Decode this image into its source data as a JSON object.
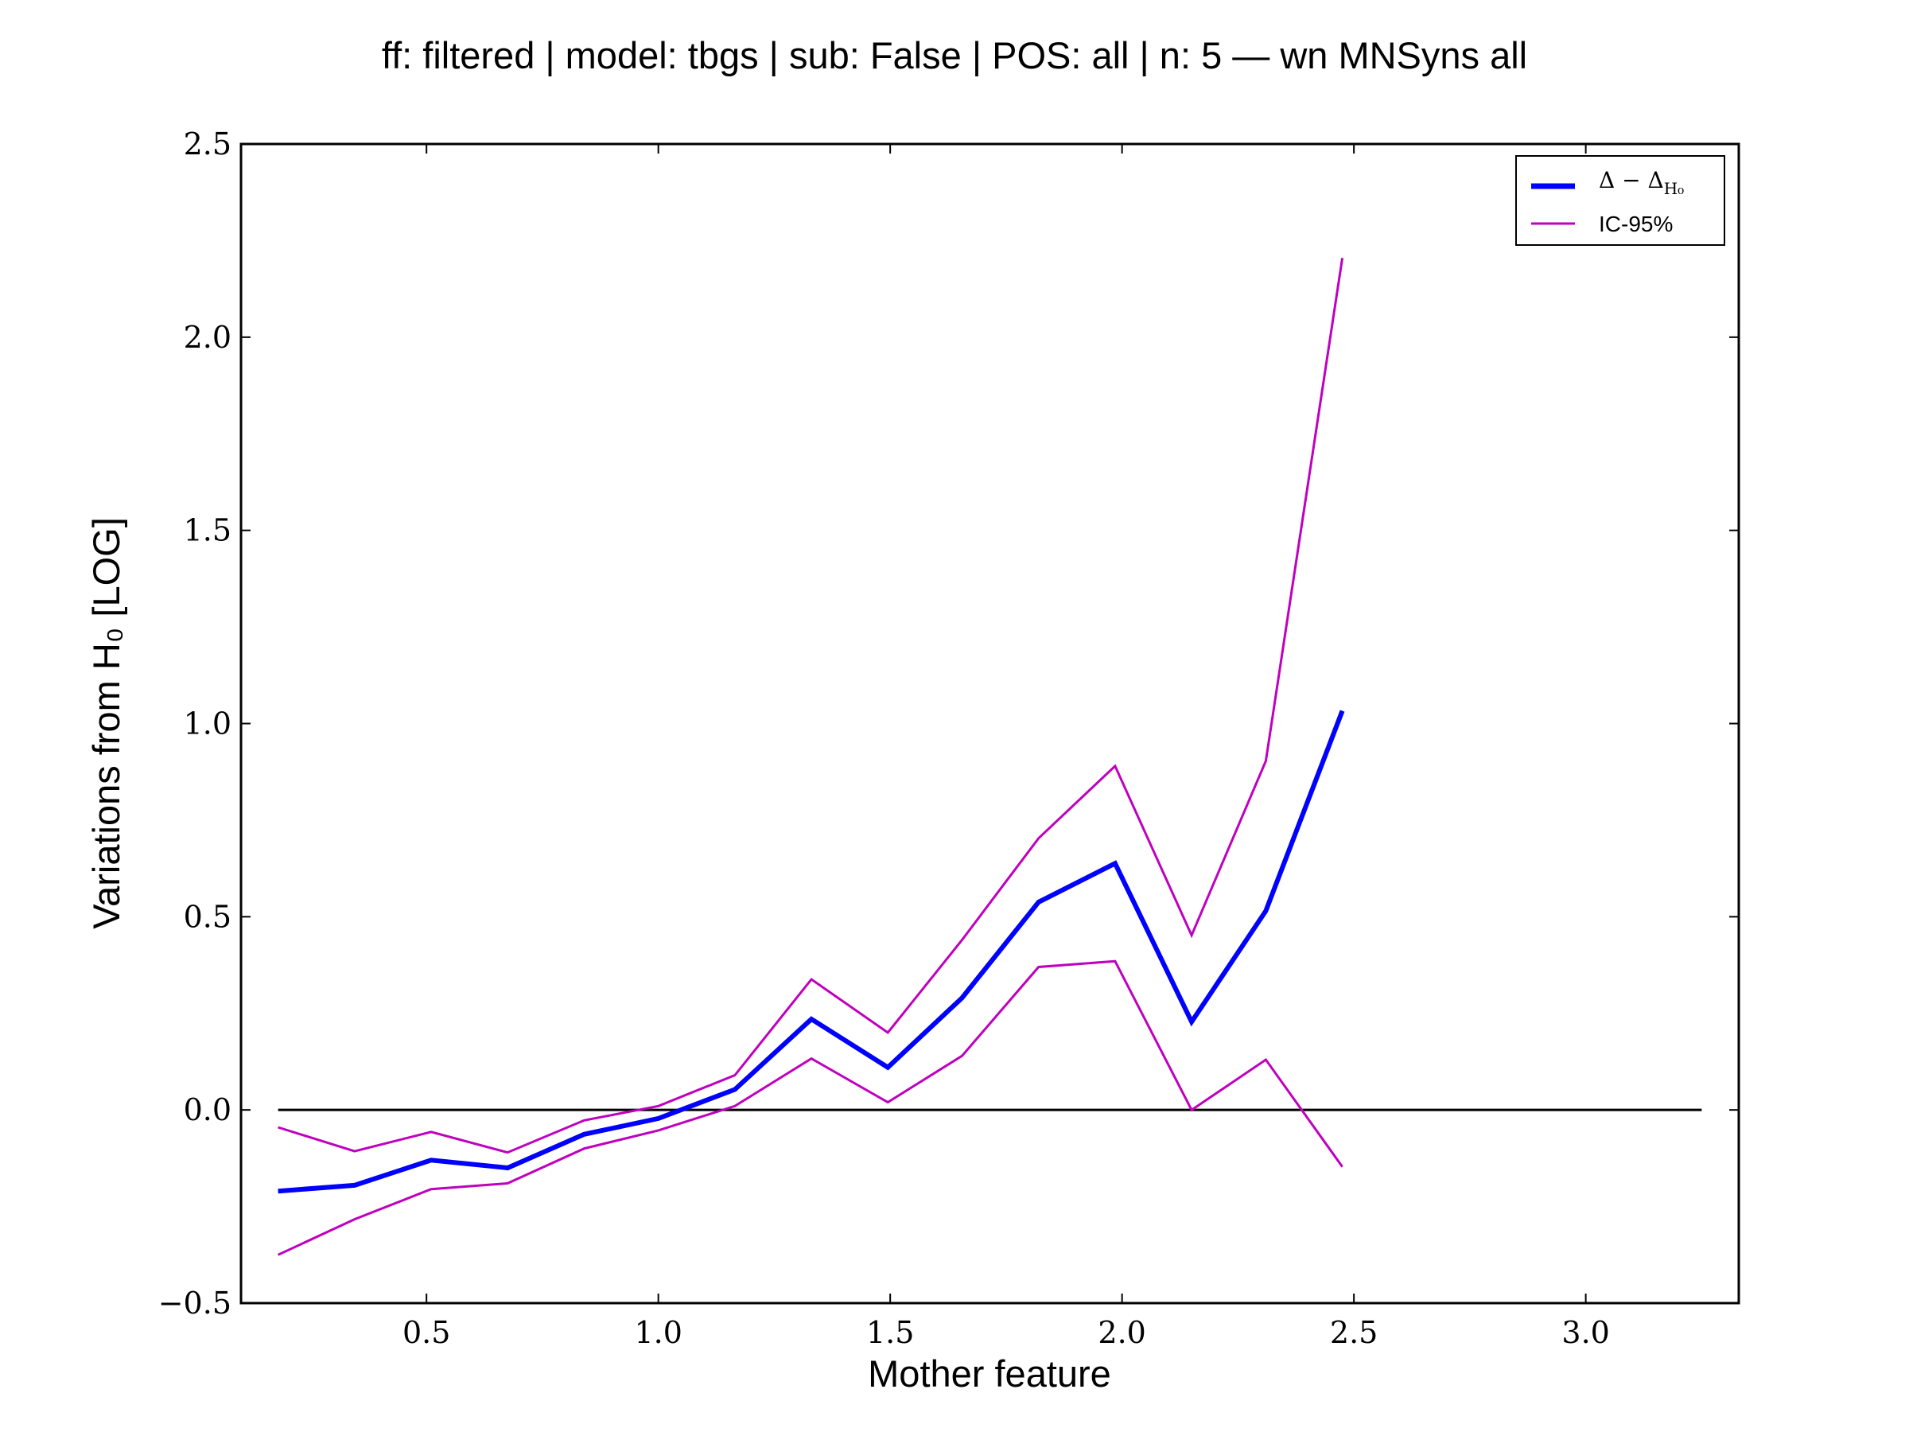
{
  "chart_data": {
    "type": "line",
    "title": "ff: filtered | model: tbgs | sub: False | POS: all | n: 5 — wn MNSyns all",
    "xlabel": "Mother feature",
    "ylabel": "Variations from H₀ [LOG]",
    "xlim": [
      0.1,
      3.33
    ],
    "ylim": [
      -0.5,
      2.5
    ],
    "grid": false,
    "legend_position": "top-right",
    "x_ticks": [
      "0.5",
      "1.0",
      "1.5",
      "2.0",
      "2.5",
      "3.0"
    ],
    "y_ticks": [
      "−0.5",
      "0.0",
      "0.5",
      "1.0",
      "1.5",
      "2.0",
      "2.5"
    ],
    "x": [
      0.18,
      0.345,
      0.51,
      0.675,
      0.84,
      1.0,
      1.165,
      1.33,
      1.495,
      1.655,
      1.82,
      1.985,
      2.15,
      2.31,
      2.475
    ],
    "series": [
      {
        "name": "Δ − Δ_H0",
        "color": "#0000ff",
        "values": [
          -0.21,
          -0.195,
          -0.13,
          -0.15,
          -0.063,
          -0.022,
          0.053,
          0.235,
          0.11,
          0.29,
          0.538,
          0.638,
          0.228,
          0.515,
          1.033
        ]
      },
      {
        "name": "IC-95%",
        "color": "#bf00bf",
        "values": [
          -0.045,
          -0.107,
          -0.057,
          -0.11,
          -0.027,
          0.01,
          0.09,
          0.338,
          0.2,
          0.44,
          0.703,
          0.89,
          0.452,
          0.903,
          2.205
        ]
      },
      {
        "name": "",
        "color": "#bf00bf",
        "values": [
          -0.375,
          -0.283,
          -0.205,
          -0.19,
          -0.1,
          -0.053,
          0.01,
          0.133,
          0.02,
          0.14,
          0.37,
          0.385,
          0.0,
          0.13,
          -0.147
        ]
      }
    ],
    "reference_line": {
      "y": 0.0,
      "x_start": 0.18,
      "x_end": 3.25,
      "color": "#000000"
    },
    "legend": [
      {
        "label": "Δ − Δ",
        "subscript": "H₀",
        "color": "#0000ff"
      },
      {
        "label": "IC-95%",
        "color": "#bf00bf"
      }
    ]
  }
}
